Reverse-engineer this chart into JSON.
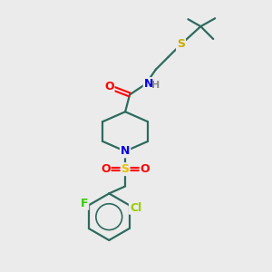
{
  "background_color": "#ebebeb",
  "bond_color": "#2d6b5e",
  "atom_colors": {
    "O": "#ff0000",
    "N": "#0000ee",
    "S_thioether": "#ccaa00",
    "S_sulfonyl": "#e8c000",
    "F": "#33cc00",
    "Cl": "#99cc00",
    "H": "#888888",
    "C": "#2d6b5e"
  },
  "figsize": [
    3.0,
    3.0
  ],
  "dpi": 100
}
